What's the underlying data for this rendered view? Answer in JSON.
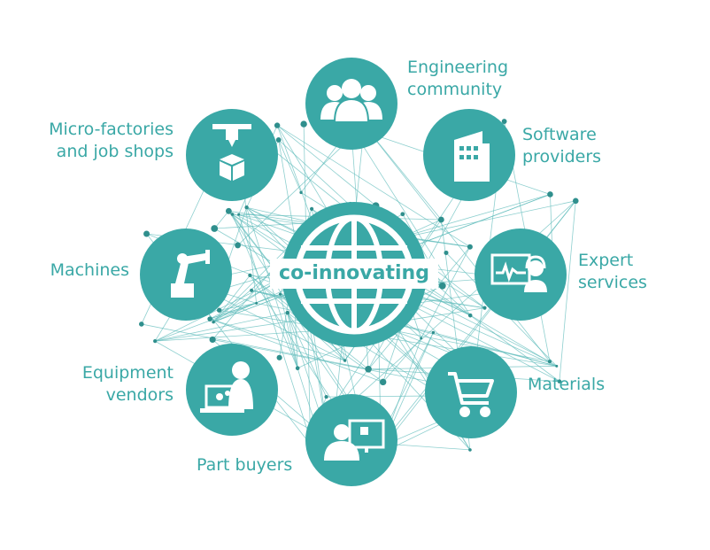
{
  "center": {
    "label": "co-innovating"
  },
  "nodes": [
    {
      "id": "engineering-community",
      "label": "Engineering\ncommunity",
      "icon": "people-group-icon"
    },
    {
      "id": "software-providers",
      "label": "Software\nproviders",
      "icon": "building-icon"
    },
    {
      "id": "expert-services",
      "label": "Expert\nservices",
      "icon": "consultant-screen-icon"
    },
    {
      "id": "materials",
      "label": "Materials",
      "icon": "shopping-cart-icon"
    },
    {
      "id": "part-buyers",
      "label": "Part buyers",
      "icon": "person-monitor-icon"
    },
    {
      "id": "equipment-vendors",
      "label": "Equipment\nvendors",
      "icon": "laptop-gears-icon"
    },
    {
      "id": "machines",
      "label": "Machines",
      "icon": "robot-arm-icon"
    },
    {
      "id": "micro-factories",
      "label": "Micro-factories\nand job shops",
      "icon": "3d-printer-icon"
    }
  ],
  "colors": {
    "accent": "#3aa8a6",
    "network": "#5fbcbb",
    "node_dot": "#2f8f8d",
    "background": "#ffffff"
  }
}
